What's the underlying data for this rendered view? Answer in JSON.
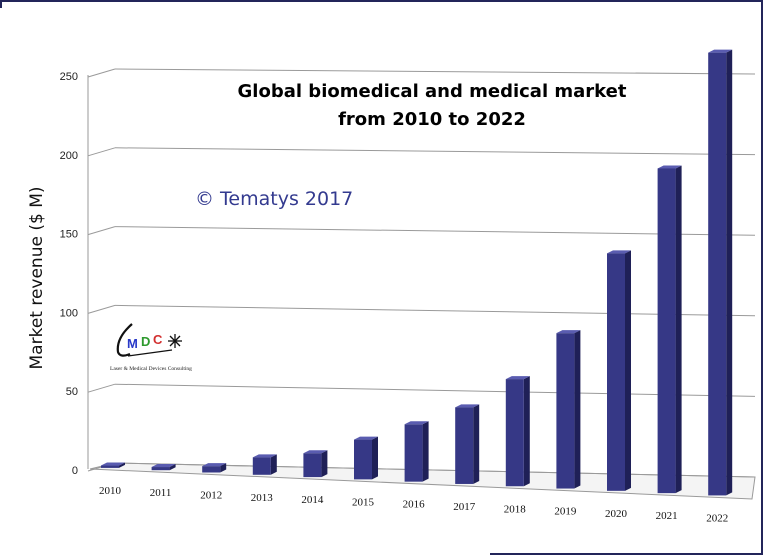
{
  "chart_data": {
    "type": "bar",
    "title_line1": "Global biomedical and medical market",
    "title_line2": "from 2010 to 2022",
    "ylabel": "Market revenue ($ M)",
    "xlabel": "",
    "categories": [
      "2010",
      "2011",
      "2012",
      "2013",
      "2014",
      "2015",
      "2016",
      "2017",
      "2018",
      "2019",
      "2020",
      "2021",
      "2022"
    ],
    "values": [
      1.5,
      2,
      4,
      11,
      15,
      25,
      36,
      48,
      67,
      97,
      148,
      202,
      275
    ],
    "ylim": [
      0,
      250
    ],
    "yticks": [
      "0",
      "50",
      "100",
      "150",
      "200",
      "250"
    ],
    "grid": true,
    "bar_color": "#363886",
    "perspective": "3d"
  },
  "watermark": "© Tematys 2017",
  "logo": {
    "letters": [
      "M",
      "D",
      "C"
    ],
    "letter_colors": [
      "#2a3ac8",
      "#2e9a2e",
      "#d23030"
    ],
    "subtitle": "Laser & Medical Devices Consulting"
  },
  "colors": {
    "border": "#23255a",
    "grid": "#9a9a9a"
  }
}
